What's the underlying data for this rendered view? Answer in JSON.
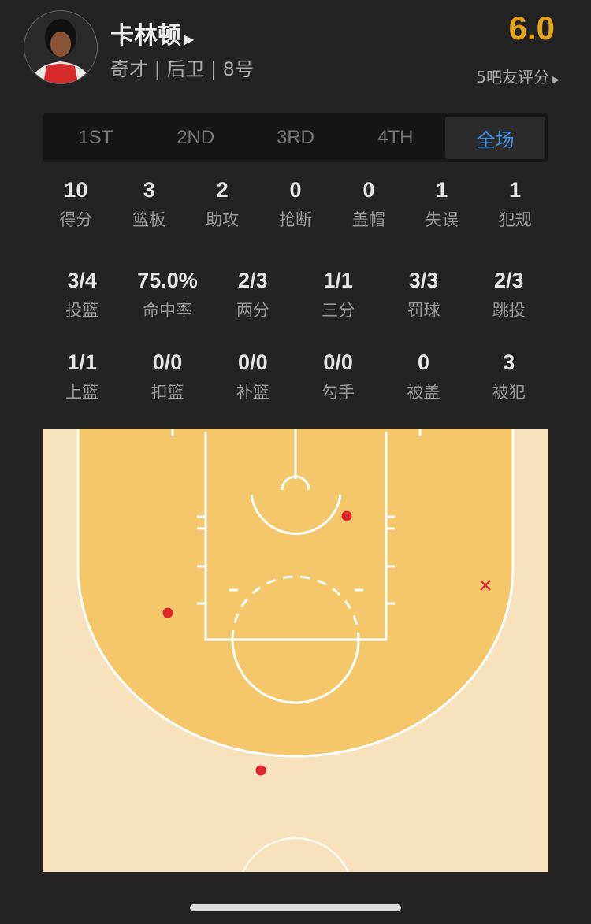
{
  "player": {
    "name": "卡林顿",
    "info": "奇才 | 后卫 | 8号",
    "rating": "6.0",
    "votes": "5吧友评分"
  },
  "tabs": [
    {
      "label": "1ST"
    },
    {
      "label": "2ND"
    },
    {
      "label": "3RD"
    },
    {
      "label": "4TH"
    },
    {
      "label": "全场",
      "selected": true
    }
  ],
  "stats_main": [
    {
      "v": "10",
      "l": "得分"
    },
    {
      "v": "3",
      "l": "篮板"
    },
    {
      "v": "2",
      "l": "助攻"
    },
    {
      "v": "0",
      "l": "抢断"
    },
    {
      "v": "0",
      "l": "盖帽"
    },
    {
      "v": "1",
      "l": "失误"
    },
    {
      "v": "1",
      "l": "犯规"
    }
  ],
  "stats_shoot": [
    {
      "v": "3/4",
      "l": "投篮"
    },
    {
      "v": "75.0%",
      "l": "命中率"
    },
    {
      "v": "2/3",
      "l": "两分"
    },
    {
      "v": "1/1",
      "l": "三分"
    },
    {
      "v": "3/3",
      "l": "罚球"
    },
    {
      "v": "2/3",
      "l": "跳投"
    }
  ],
  "stats_detail": [
    {
      "v": "1/1",
      "l": "上篮"
    },
    {
      "v": "0/0",
      "l": "扣篮"
    },
    {
      "v": "0/0",
      "l": "补篮"
    },
    {
      "v": "0/0",
      "l": "勾手"
    },
    {
      "v": "0",
      "l": "被盖"
    },
    {
      "v": "3",
      "l": "被犯"
    }
  ],
  "shots": [
    {
      "result": "made"
    },
    {
      "result": "made"
    },
    {
      "result": "made"
    },
    {
      "result": "missed"
    }
  ],
  "colors": {
    "rating": "#e5a41a",
    "selected_tab": "#3d8fe0",
    "made": "#e0252f",
    "paint": "#f5c76b",
    "court": "#f7e2bd"
  }
}
